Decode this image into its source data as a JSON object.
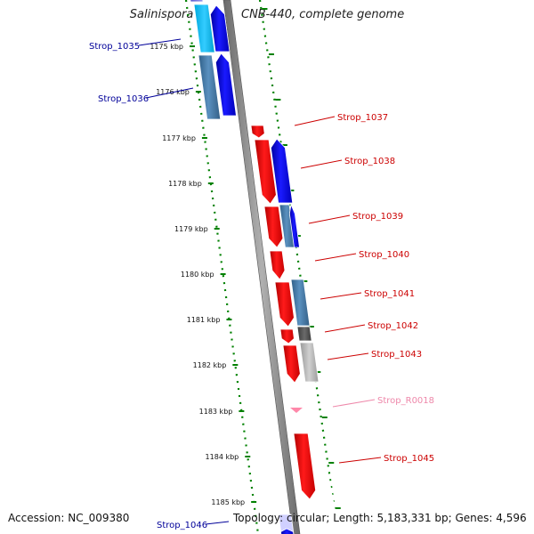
{
  "header": {
    "title": "Salinispora tropica CNB-440, complete genome"
  },
  "footer": {
    "accession": "Accession: NC_009380",
    "topology": "Topology: circular; Length: 5,183,331 bp; Genes: 4,596"
  },
  "colors": {
    "forward_gene": "#ff0000",
    "reverse_gene": "#0000ff",
    "strand_axis": "#808080",
    "tick_mark": "#008000",
    "forward_label": "#cc0000",
    "reverse_label": "#000099",
    "rna_label": "#ee88aa"
  },
  "kbp_ticks": [
    "1175 kbp",
    "1176 kbp",
    "1177 kbp",
    "1178 kbp",
    "1179 kbp",
    "1180 kbp",
    "1181 kbp",
    "1182 kbp",
    "1183 kbp",
    "1184 kbp",
    "1185 kbp"
  ],
  "gene_labels": [
    {
      "name": "Strop_1035",
      "strand": "reverse"
    },
    {
      "name": "Strop_1036",
      "strand": "reverse"
    },
    {
      "name": "Strop_1037",
      "strand": "forward"
    },
    {
      "name": "Strop_1038",
      "strand": "forward"
    },
    {
      "name": "Strop_1039",
      "strand": "forward"
    },
    {
      "name": "Strop_1040",
      "strand": "forward"
    },
    {
      "name": "Strop_1041",
      "strand": "forward"
    },
    {
      "name": "Strop_1042",
      "strand": "forward"
    },
    {
      "name": "Strop_1043",
      "strand": "forward"
    },
    {
      "name": "Strop_R0018",
      "strand": "rna"
    },
    {
      "name": "Strop_1045",
      "strand": "forward"
    },
    {
      "name": "Strop_1046",
      "strand": "reverse"
    }
  ]
}
